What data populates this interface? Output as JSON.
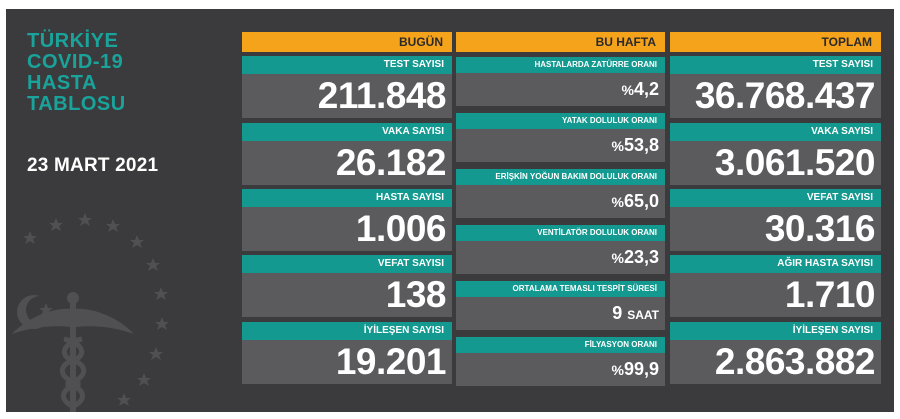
{
  "title_lines": [
    "TÜRKİYE",
    "COVID-19",
    "HASTA",
    "TABLOSU"
  ],
  "date": "23 MART 2021",
  "colors": {
    "background": "#3b3b3d",
    "accent_teal": "#13998f",
    "title_teal": "#19a39b",
    "header_orange": "#f5a31a",
    "value_gray": "#5b5b5d"
  },
  "today": {
    "header": "BUGÜN",
    "items": [
      {
        "label": "TEST SAYISI",
        "value": "211.848"
      },
      {
        "label": "VAKA SAYISI",
        "value": "26.182"
      },
      {
        "label": "HASTA SAYISI",
        "value": "1.006"
      },
      {
        "label": "VEFAT SAYISI",
        "value": "138"
      },
      {
        "label": "İYİLEŞEN SAYISI",
        "value": "19.201"
      }
    ]
  },
  "week": {
    "header": "BU HAFTA",
    "items": [
      {
        "label": "HASTALARDA ZATÜRRE ORANI",
        "prefix": "%",
        "value": "4,2",
        "unit": ""
      },
      {
        "label": "YATAK DOLULUK ORANI",
        "prefix": "%",
        "value": "53,8",
        "unit": ""
      },
      {
        "label": "ERİŞKİN YOĞUN BAKIM DOLULUK ORANI",
        "prefix": "%",
        "value": "65,0",
        "unit": ""
      },
      {
        "label": "VENTİLATÖR DOLULUK ORANI",
        "prefix": "%",
        "value": "23,3",
        "unit": ""
      },
      {
        "label": "ORTALAMA TEMASLI TESPİT SÜRESİ",
        "prefix": "",
        "value": "9",
        "unit": "SAAT"
      },
      {
        "label": "FİLYASYON ORANI",
        "prefix": "%",
        "value": "99,9",
        "unit": ""
      }
    ]
  },
  "total": {
    "header": "TOPLAM",
    "items": [
      {
        "label": "TEST SAYISI",
        "value": "36.768.437"
      },
      {
        "label": "VAKA SAYISI",
        "value": "3.061.520"
      },
      {
        "label": "VEFAT SAYISI",
        "value": "30.316"
      },
      {
        "label": "AĞIR HASTA SAYISI",
        "value": "1.710"
      },
      {
        "label": "İYİLEŞEN SAYISI",
        "value": "2.863.882"
      }
    ]
  }
}
